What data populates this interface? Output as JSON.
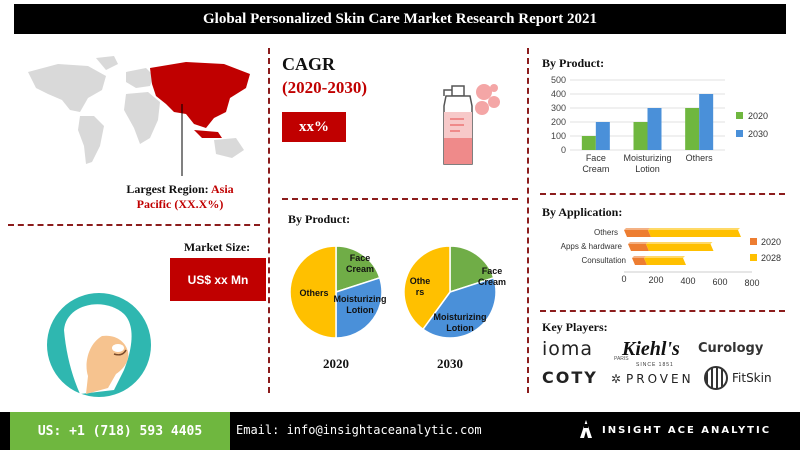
{
  "title": "Global Personalized Skin Care Market Research Report 2021",
  "region": {
    "label": "Largest Region: ",
    "value_line1": "Asia",
    "value_line2": "Pacific (XX.X%)"
  },
  "market_size": {
    "title": "Market Size:",
    "value": "US$  xx Mn"
  },
  "cagr": {
    "title": "CAGR",
    "period": "(2020-2030)",
    "value": "xx%"
  },
  "pie_section": {
    "title": "By Product:",
    "year_left": "2020",
    "year_right": "2030"
  },
  "bar_section": {
    "title": "By Product:"
  },
  "app_section": {
    "title": "By Application:"
  },
  "players": {
    "title": "Key Players:",
    "logos": [
      "ioma",
      "PARIS",
      "Kiehl's",
      "SINCE 1851",
      "Curology",
      "COTY",
      "PROVEN",
      "FitSkin"
    ]
  },
  "footer": {
    "phone": "US: +1 (718) 593 4405",
    "email": "Email: info@insightaceanalytic.com",
    "brand": "INSIGHT ACE ANALYTIC"
  },
  "colors": {
    "accent_red": "#c00000",
    "series_2020_bar": "#6fb73f",
    "series_2030_bar": "#4a90d9",
    "series_2020_hbar": "#ed7d31",
    "series_2028_hbar": "#ffc000",
    "pie_green": "#70ad47",
    "pie_blue": "#4a90d9",
    "pie_gold": "#ffc000",
    "footer_green": "#6fb73f"
  },
  "chart_data": [
    {
      "type": "bar",
      "categories": [
        "Face Cream",
        "Moisturizing Lotion",
        "Others"
      ],
      "series": [
        {
          "name": "2020",
          "values": [
            100,
            200,
            300
          ]
        },
        {
          "name": "2030",
          "values": [
            200,
            300,
            400
          ]
        }
      ],
      "yticks": [
        "0",
        "100",
        "200",
        "300",
        "400",
        "500"
      ],
      "ylim": [
        0,
        500
      ],
      "legend": "right"
    },
    {
      "type": "bar",
      "orientation": "horizontal",
      "categories": [
        "Others",
        "Apps & hardware",
        "Consultation"
      ],
      "series": [
        {
          "name": "2020",
          "values": [
            160,
            120,
            80
          ]
        },
        {
          "name": "2028",
          "values": [
            600,
            430,
            260
          ]
        }
      ],
      "xticks": [
        "0",
        "200",
        "400",
        "600",
        "800"
      ],
      "xlim": [
        0,
        800
      ],
      "legend": "right"
    },
    {
      "type": "pie",
      "labels": [
        "Face Cream",
        "Moisturizing Lotion",
        "Others"
      ],
      "label_lines": [
        [
          "Face",
          "Cream"
        ],
        [
          "Moisturizing",
          "Lotion"
        ],
        [
          "Others"
        ]
      ],
      "values": [
        20,
        30,
        50
      ],
      "year": "2020"
    },
    {
      "type": "pie",
      "labels": [
        "Face Cream",
        "Moisturizing Lotion",
        "Others"
      ],
      "label_lines": [
        [
          "Face",
          "Cream"
        ],
        [
          "Moisturizing",
          "Lotion"
        ],
        [
          "Othe",
          "rs"
        ]
      ],
      "values": [
        20,
        40,
        40
      ],
      "year": "2030"
    }
  ]
}
